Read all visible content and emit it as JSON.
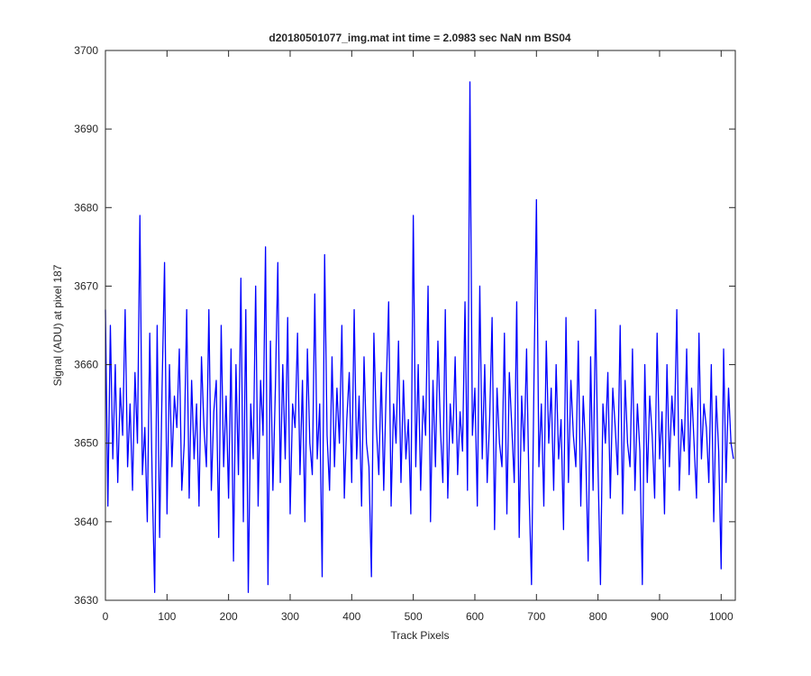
{
  "chart_data": {
    "type": "line",
    "title": "d20180501077_img.mat int time = 2.0983 sec  NaN nm BS04",
    "xlabel": "Track Pixels",
    "ylabel": "Signal (ADU) at pixel 187",
    "xlim": [
      0,
      1023
    ],
    "ylim": [
      3630,
      3700
    ],
    "xticks": [
      0,
      100,
      200,
      300,
      400,
      500,
      600,
      700,
      800,
      900,
      1000
    ],
    "yticks": [
      3630,
      3640,
      3650,
      3660,
      3670,
      3680,
      3690,
      3700
    ],
    "x": [
      0,
      4,
      8,
      12,
      16,
      20,
      24,
      28,
      32,
      36,
      40,
      44,
      48,
      52,
      56,
      60,
      64,
      68,
      72,
      76,
      80,
      84,
      88,
      92,
      96,
      100,
      104,
      108,
      112,
      116,
      120,
      124,
      128,
      132,
      136,
      140,
      144,
      148,
      152,
      156,
      160,
      164,
      168,
      172,
      176,
      180,
      184,
      188,
      192,
      196,
      200,
      204,
      208,
      212,
      216,
      220,
      224,
      228,
      232,
      236,
      240,
      244,
      248,
      252,
      256,
      260,
      264,
      268,
      272,
      276,
      280,
      284,
      288,
      292,
      296,
      300,
      304,
      308,
      312,
      316,
      320,
      324,
      328,
      332,
      336,
      340,
      344,
      348,
      352,
      356,
      360,
      364,
      368,
      372,
      376,
      380,
      384,
      388,
      392,
      396,
      400,
      404,
      408,
      412,
      416,
      420,
      424,
      428,
      432,
      436,
      440,
      444,
      448,
      452,
      456,
      460,
      464,
      468,
      472,
      476,
      480,
      484,
      488,
      492,
      496,
      500,
      504,
      508,
      512,
      516,
      520,
      524,
      528,
      532,
      536,
      540,
      544,
      548,
      552,
      556,
      560,
      564,
      568,
      572,
      576,
      580,
      584,
      588,
      592,
      596,
      600,
      604,
      608,
      612,
      616,
      620,
      624,
      628,
      632,
      636,
      640,
      644,
      648,
      652,
      656,
      660,
      664,
      668,
      672,
      676,
      680,
      684,
      688,
      692,
      696,
      700,
      704,
      708,
      712,
      716,
      720,
      724,
      728,
      732,
      736,
      740,
      744,
      748,
      752,
      756,
      760,
      764,
      768,
      772,
      776,
      780,
      784,
      788,
      792,
      796,
      800,
      804,
      808,
      812,
      816,
      820,
      824,
      828,
      832,
      836,
      840,
      844,
      848,
      852,
      856,
      860,
      864,
      868,
      872,
      876,
      880,
      884,
      888,
      892,
      896,
      900,
      904,
      908,
      912,
      916,
      920,
      924,
      928,
      932,
      936,
      940,
      944,
      948,
      952,
      956,
      960,
      964,
      968,
      972,
      976,
      980,
      984,
      988,
      992,
      996,
      1000,
      1004,
      1008,
      1012,
      1016,
      1020
    ],
    "series": [
      {
        "color": "#0000ff",
        "values": [
          3667,
          3642,
          3665,
          3648,
          3660,
          3645,
          3657,
          3651,
          3667,
          3647,
          3655,
          3644,
          3659,
          3650,
          3679,
          3646,
          3652,
          3640,
          3664,
          3645,
          3631,
          3665,
          3638,
          3657,
          3673,
          3641,
          3660,
          3647,
          3656,
          3652,
          3662,
          3644,
          3650,
          3667,
          3643,
          3658,
          3648,
          3655,
          3642,
          3661,
          3652,
          3647,
          3667,
          3644,
          3654,
          3658,
          3638,
          3665,
          3647,
          3656,
          3643,
          3662,
          3635,
          3660,
          3646,
          3671,
          3640,
          3667,
          3631,
          3655,
          3648,
          3670,
          3642,
          3658,
          3651,
          3675,
          3632,
          3663,
          3644,
          3657,
          3673,
          3645,
          3660,
          3648,
          3666,
          3641,
          3655,
          3652,
          3664,
          3646,
          3658,
          3640,
          3662,
          3650,
          3646,
          3669,
          3648,
          3655,
          3633,
          3674,
          3651,
          3644,
          3661,
          3647,
          3657,
          3650,
          3665,
          3643,
          3653,
          3659,
          3645,
          3667,
          3648,
          3656,
          3642,
          3661,
          3650,
          3647,
          3633,
          3664,
          3652,
          3646,
          3659,
          3644,
          3657,
          3668,
          3642,
          3655,
          3650,
          3663,
          3645,
          3658,
          3648,
          3653,
          3641,
          3679,
          3647,
          3660,
          3644,
          3656,
          3651,
          3670,
          3640,
          3658,
          3647,
          3663,
          3652,
          3645,
          3667,
          3643,
          3655,
          3650,
          3661,
          3646,
          3654,
          3649,
          3668,
          3644,
          3696,
          3651,
          3657,
          3642,
          3670,
          3648,
          3660,
          3645,
          3653,
          3666,
          3639,
          3657,
          3650,
          3647,
          3664,
          3641,
          3659,
          3652,
          3645,
          3668,
          3638,
          3656,
          3649,
          3662,
          3644,
          3632,
          3658,
          3681,
          3647,
          3655,
          3642,
          3663,
          3650,
          3657,
          3644,
          3660,
          3648,
          3653,
          3639,
          3666,
          3645,
          3658,
          3651,
          3647,
          3663,
          3642,
          3656,
          3649,
          3635,
          3661,
          3644,
          3667,
          3647,
          3632,
          3655,
          3650,
          3659,
          3643,
          3657,
          3652,
          3646,
          3665,
          3641,
          3658,
          3650,
          3647,
          3662,
          3644,
          3655,
          3649,
          3632,
          3660,
          3645,
          3656,
          3651,
          3643,
          3664,
          3648,
          3654,
          3641,
          3660,
          3647,
          3656,
          3651,
          3667,
          3644,
          3653,
          3649,
          3662,
          3646,
          3657,
          3650,
          3643,
          3664,
          3648,
          3655,
          3652,
          3645,
          3660,
          3640,
          3656,
          3649,
          3634,
          3662,
          3645,
          3657,
          3650,
          3648
        ]
      }
    ]
  }
}
